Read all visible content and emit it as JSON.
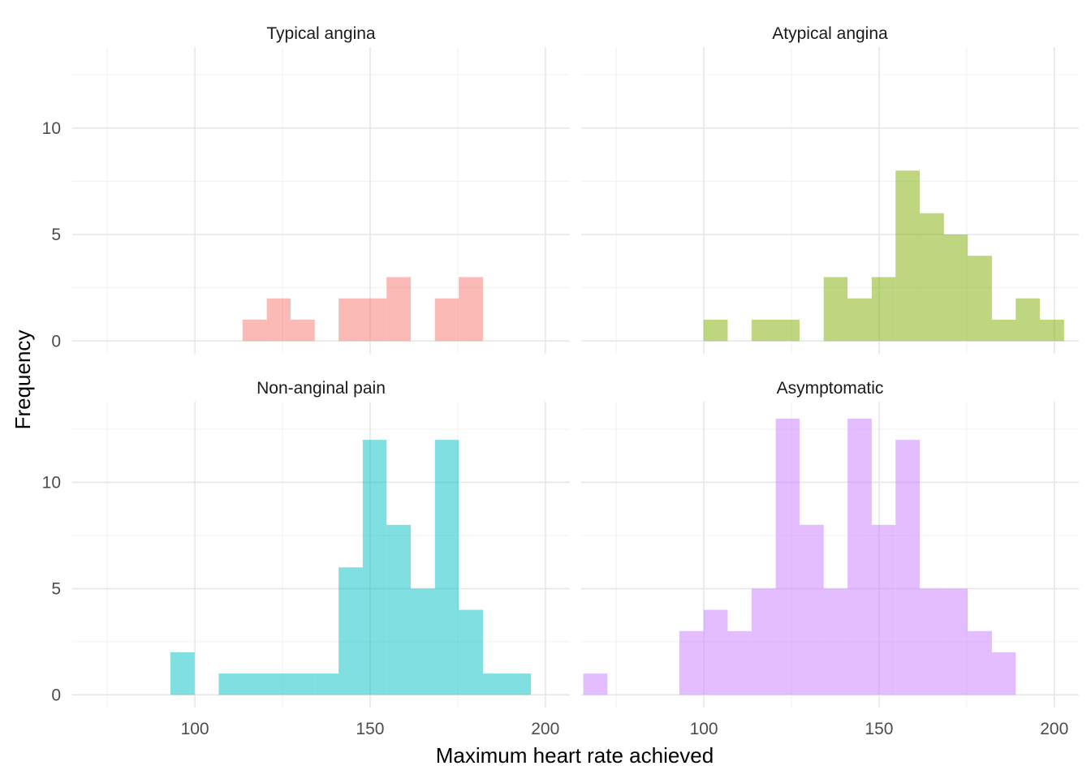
{
  "chart_data": {
    "type": "bar",
    "layout": "facet-wrap 2x2",
    "xlabel": "Maximum heart rate achieved",
    "ylabel": "Frequency",
    "xlim": [
      65,
      207
    ],
    "ylim": [
      -0.6,
      13.8
    ],
    "x_ticks": [
      100,
      150,
      200
    ],
    "y_ticks": [
      0,
      5,
      10
    ],
    "grid": true,
    "bin_width": 6.85,
    "panels": [
      {
        "title": "Typical angina",
        "color": "#F8766D",
        "bins": [
          {
            "x0": 113.6,
            "x1": 120.5,
            "count": 1
          },
          {
            "x0": 120.5,
            "x1": 127.3,
            "count": 2
          },
          {
            "x0": 127.3,
            "x1": 134.2,
            "count": 1
          },
          {
            "x0": 141.0,
            "x1": 147.9,
            "count": 2
          },
          {
            "x0": 147.9,
            "x1": 154.7,
            "count": 2
          },
          {
            "x0": 154.7,
            "x1": 161.6,
            "count": 3
          },
          {
            "x0": 168.5,
            "x1": 175.3,
            "count": 2
          },
          {
            "x0": 175.3,
            "x1": 182.2,
            "count": 3
          }
        ]
      },
      {
        "title": "Atypical angina",
        "color": "#7CAE00",
        "bins": [
          {
            "x0": 99.9,
            "x1": 106.8,
            "count": 1
          },
          {
            "x0": 113.6,
            "x1": 120.5,
            "count": 1
          },
          {
            "x0": 120.5,
            "x1": 127.3,
            "count": 1
          },
          {
            "x0": 134.2,
            "x1": 141.0,
            "count": 3
          },
          {
            "x0": 141.0,
            "x1": 147.9,
            "count": 2
          },
          {
            "x0": 147.9,
            "x1": 154.7,
            "count": 3
          },
          {
            "x0": 154.7,
            "x1": 161.6,
            "count": 8
          },
          {
            "x0": 161.6,
            "x1": 168.5,
            "count": 6
          },
          {
            "x0": 168.5,
            "x1": 175.3,
            "count": 5
          },
          {
            "x0": 175.3,
            "x1": 182.2,
            "count": 4
          },
          {
            "x0": 182.2,
            "x1": 189.0,
            "count": 1
          },
          {
            "x0": 189.0,
            "x1": 195.9,
            "count": 2
          },
          {
            "x0": 195.9,
            "x1": 202.8,
            "count": 1
          }
        ]
      },
      {
        "title": "Non-anginal pain",
        "color": "#00BFC4",
        "bins": [
          {
            "x0": 93.0,
            "x1": 99.9,
            "count": 2
          },
          {
            "x0": 106.8,
            "x1": 113.6,
            "count": 1
          },
          {
            "x0": 113.6,
            "x1": 120.5,
            "count": 1
          },
          {
            "x0": 120.5,
            "x1": 127.3,
            "count": 1
          },
          {
            "x0": 127.3,
            "x1": 134.2,
            "count": 1
          },
          {
            "x0": 134.2,
            "x1": 141.0,
            "count": 1
          },
          {
            "x0": 141.0,
            "x1": 147.9,
            "count": 6
          },
          {
            "x0": 147.9,
            "x1": 154.7,
            "count": 12
          },
          {
            "x0": 154.7,
            "x1": 161.6,
            "count": 8
          },
          {
            "x0": 161.6,
            "x1": 168.5,
            "count": 5
          },
          {
            "x0": 168.5,
            "x1": 175.3,
            "count": 12
          },
          {
            "x0": 175.3,
            "x1": 182.2,
            "count": 4
          },
          {
            "x0": 182.2,
            "x1": 189.0,
            "count": 1
          },
          {
            "x0": 189.0,
            "x1": 195.9,
            "count": 1
          }
        ]
      },
      {
        "title": "Asymptomatic",
        "color": "#C77CFF",
        "bins": [
          {
            "x0": 65.6,
            "x1": 72.5,
            "count": 1
          },
          {
            "x0": 93.0,
            "x1": 99.9,
            "count": 3
          },
          {
            "x0": 99.9,
            "x1": 106.8,
            "count": 4
          },
          {
            "x0": 106.8,
            "x1": 113.6,
            "count": 3
          },
          {
            "x0": 113.6,
            "x1": 120.5,
            "count": 5
          },
          {
            "x0": 120.5,
            "x1": 127.3,
            "count": 13
          },
          {
            "x0": 127.3,
            "x1": 134.2,
            "count": 8
          },
          {
            "x0": 134.2,
            "x1": 141.0,
            "count": 5
          },
          {
            "x0": 141.0,
            "x1": 147.9,
            "count": 13
          },
          {
            "x0": 147.9,
            "x1": 154.7,
            "count": 8
          },
          {
            "x0": 154.7,
            "x1": 161.6,
            "count": 12
          },
          {
            "x0": 161.6,
            "x1": 168.5,
            "count": 5
          },
          {
            "x0": 168.5,
            "x1": 175.3,
            "count": 5
          },
          {
            "x0": 175.3,
            "x1": 182.2,
            "count": 3
          },
          {
            "x0": 182.2,
            "x1": 189.0,
            "count": 2
          }
        ]
      }
    ]
  }
}
